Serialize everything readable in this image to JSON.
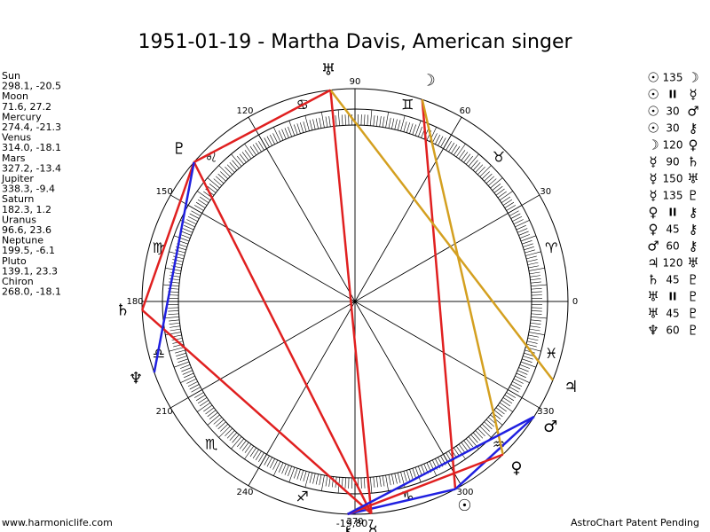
{
  "title": "1951-01-19 - Martha Davis, American singer",
  "planets": [
    {
      "name": "Sun",
      "glyph": "☉",
      "position": "298.1, -20.5"
    },
    {
      "name": "Moon",
      "glyph": "☽",
      "position": "71.6, 27.2"
    },
    {
      "name": "Mercury",
      "glyph": "☿",
      "position": "274.4, -21.3"
    },
    {
      "name": "Venus",
      "glyph": "♀",
      "position": "314.0, -18.1"
    },
    {
      "name": "Mars",
      "glyph": "♂",
      "position": "327.2, -13.4"
    },
    {
      "name": "Jupiter",
      "glyph": "♃",
      "position": "338.3, -9.4"
    },
    {
      "name": "Saturn",
      "glyph": "♄",
      "position": "182.3, 1.2"
    },
    {
      "name": "Uranus",
      "glyph": "♅",
      "position": "96.6, 23.6"
    },
    {
      "name": "Neptune",
      "glyph": "♆",
      "position": "199.5, -6.1"
    },
    {
      "name": "Pluto",
      "glyph": "♇",
      "position": "139.1, 23.3"
    },
    {
      "name": "Chiron",
      "glyph": "⚷",
      "position": "268.0, -18.1"
    }
  ],
  "aspects": [
    {
      "from": 0,
      "aspect": "135",
      "to": 1,
      "color": "#e02020"
    },
    {
      "from": 0,
      "aspect": "II",
      "to": 2
    },
    {
      "from": 0,
      "aspect": "30",
      "to": 4,
      "color": "#2020e0"
    },
    {
      "from": 0,
      "aspect": "30",
      "to": 10,
      "color": "#2020e0"
    },
    {
      "from": 1,
      "aspect": "120",
      "to": 3,
      "color": "#d4a020"
    },
    {
      "from": 2,
      "aspect": "90",
      "to": 6,
      "color": "#e02020"
    },
    {
      "from": 2,
      "aspect": "150",
      "to": 7,
      "color": "#e02020"
    },
    {
      "from": 2,
      "aspect": "135",
      "to": 9,
      "color": "#e02020"
    },
    {
      "from": 3,
      "aspect": "II",
      "to": 10
    },
    {
      "from": 3,
      "aspect": "45",
      "to": 10,
      "color": "#e02020"
    },
    {
      "from": 4,
      "aspect": "60",
      "to": 10,
      "color": "#2020e0"
    },
    {
      "from": 5,
      "aspect": "120",
      "to": 7,
      "color": "#d4a020"
    },
    {
      "from": 6,
      "aspect": "45",
      "to": 9,
      "color": "#e02020"
    },
    {
      "from": 7,
      "aspect": "II",
      "to": 9
    },
    {
      "from": 7,
      "aspect": "45",
      "to": 9,
      "color": "#e02020"
    },
    {
      "from": 8,
      "aspect": "60",
      "to": 9,
      "color": "#2020e0"
    }
  ],
  "signs": [
    "♈",
    "♉",
    "♊",
    "♋",
    "♌",
    "♍",
    "♎",
    "♏",
    "♐",
    "♑",
    "♒",
    "♓"
  ],
  "degree_labels": [
    0,
    30,
    60,
    90,
    120,
    150,
    180,
    210,
    240,
    270,
    300,
    330
  ],
  "bottom_label": "-19,807",
  "footer_left": "www.harmoniclife.com",
  "footer_right": "AstroChart Patent Pending"
}
